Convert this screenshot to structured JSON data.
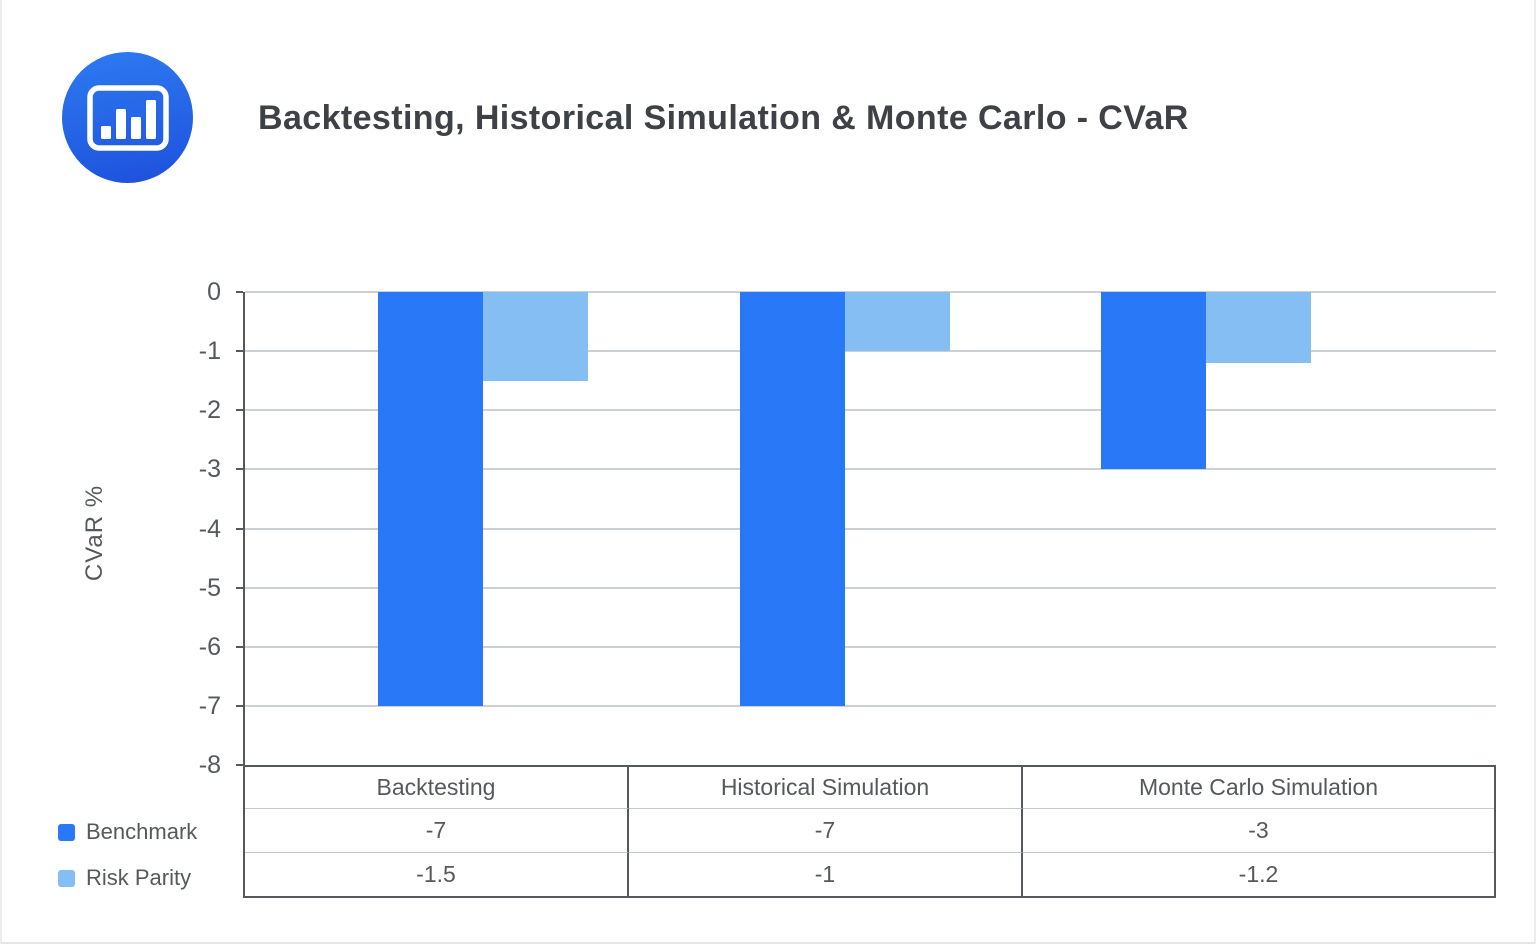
{
  "title": "Backtesting, Historical Simulation & Monte Carlo - CVaR",
  "logo": {
    "icon": "bar-chart-icon",
    "gradient_top": "#2D7BF1",
    "gradient_bottom": "#1E50DC"
  },
  "chart_data": {
    "type": "bar",
    "orientation": "vertical",
    "title": "Backtesting, Historical Simulation & Monte Carlo - CVaR",
    "ylabel": "CVaR %",
    "xlabel": "",
    "categories": [
      "Backtesting",
      "Historical Simulation",
      "Monte Carlo Simulation"
    ],
    "series": [
      {
        "name": "Benchmark",
        "color": "#2878F8",
        "values": [
          -7,
          -7,
          -3
        ]
      },
      {
        "name": "Risk Parity",
        "color": "#85BEF2",
        "values": [
          -1.5,
          -1,
          -1.2
        ]
      }
    ],
    "ylim": [
      -8,
      0
    ],
    "yticks": [
      0,
      -1,
      -2,
      -3,
      -4,
      -5,
      -6,
      -7,
      -8
    ],
    "grid": true,
    "gridline_color": "#cdd0d3",
    "axis_color": "#55585c",
    "legend_position": "bottom-left",
    "show_data_table": true
  },
  "table": {
    "headers": [
      "Backtesting",
      "Historical Simulation",
      "Monte Carlo Simulation"
    ],
    "rows": [
      {
        "label": "Benchmark",
        "values": [
          "-7",
          "-7",
          "-3"
        ]
      },
      {
        "label": "Risk Parity",
        "values": [
          "-1.5",
          "-1",
          "-1.2"
        ]
      }
    ]
  }
}
